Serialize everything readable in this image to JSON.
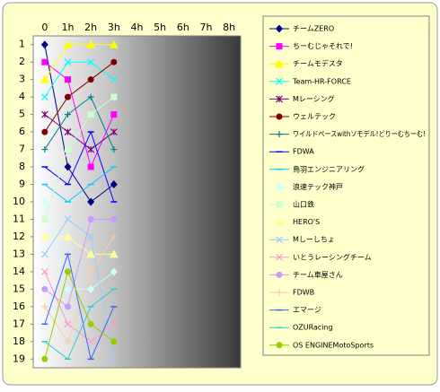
{
  "chart_data": {
    "type": "line",
    "categories": [
      "0",
      "1h",
      "2h",
      "3h",
      "4h",
      "5h",
      "6h",
      "7h",
      "8h"
    ],
    "ylim": [
      0.5,
      19.5
    ],
    "y_reversed": true,
    "yticks": [
      1,
      2,
      3,
      4,
      5,
      6,
      7,
      8,
      9,
      10,
      11,
      12,
      13,
      14,
      15,
      16,
      17,
      18,
      19
    ],
    "series": [
      {
        "name": "チームZERO",
        "color": "#000080",
        "marker": "diamond",
        "values": [
          1,
          8,
          10,
          9,
          null,
          null,
          null,
          null,
          null
        ]
      },
      {
        "name": "ちーむじゃそれで!",
        "color": "#FF00FF",
        "marker": "square",
        "values": [
          2,
          3,
          8,
          5,
          null,
          null,
          null,
          null,
          null
        ]
      },
      {
        "name": "チームモデスタ",
        "color": "#FFFF00",
        "marker": "triangle",
        "values": [
          3,
          1,
          1,
          1,
          null,
          null,
          null,
          null,
          null
        ]
      },
      {
        "name": "Team-HR-FORCE",
        "color": "#00FFFF",
        "marker": "x",
        "values": [
          4,
          2,
          2,
          3,
          null,
          null,
          null,
          null,
          null
        ]
      },
      {
        "name": "Mレーシング",
        "color": "#800080",
        "marker": "star",
        "values": [
          5,
          6,
          7,
          6,
          null,
          null,
          null,
          null,
          null
        ]
      },
      {
        "name": "ウェルテック",
        "color": "#800000",
        "marker": "circle",
        "values": [
          6,
          4,
          3,
          2,
          null,
          null,
          null,
          null,
          null
        ]
      },
      {
        "name": "ワイルドペースwithソモデル!どりーむちーむ!",
        "color": "#008080",
        "marker": "plus",
        "values": [
          7,
          5,
          4,
          7,
          null,
          null,
          null,
          null,
          null
        ]
      },
      {
        "name": "FDWA",
        "color": "#0000FF",
        "marker": "dash",
        "values": [
          8,
          9,
          6,
          10,
          null,
          null,
          null,
          null,
          null
        ]
      },
      {
        "name": "鳥羽エンジニアリング",
        "color": "#00CCFF",
        "marker": "dash",
        "values": [
          9,
          10,
          9,
          8,
          null,
          null,
          null,
          null,
          null
        ]
      },
      {
        "name": "浪速テック神戸",
        "color": "#CCFFFF",
        "marker": "diamond",
        "values": [
          10,
          15,
          15,
          14,
          null,
          null,
          null,
          null,
          null
        ]
      },
      {
        "name": "山口鉄",
        "color": "#CCFFCC",
        "marker": "square",
        "values": [
          11,
          7,
          5,
          4,
          null,
          null,
          null,
          null,
          null
        ]
      },
      {
        "name": "HERO'S",
        "color": "#FFFF99",
        "marker": "triangle",
        "values": [
          12,
          12,
          13,
          13,
          null,
          null,
          null,
          null,
          null
        ]
      },
      {
        "name": "Mしーしちょ",
        "color": "#99CCFF",
        "marker": "x",
        "values": [
          13,
          11,
          12,
          19,
          null,
          null,
          null,
          null,
          null
        ]
      },
      {
        "name": "いとうレーシングチーム",
        "color": "#FF99CC",
        "marker": "x",
        "values": [
          14,
          17,
          18,
          17,
          null,
          null,
          null,
          null,
          null
        ]
      },
      {
        "name": "チーム車屋さん",
        "color": "#CC99FF",
        "marker": "circle",
        "values": [
          15,
          16,
          11,
          11,
          null,
          null,
          null,
          null,
          null
        ]
      },
      {
        "name": "FDWB",
        "color": "#FFCC99",
        "marker": "plus",
        "values": [
          16,
          18,
          14,
          12,
          null,
          null,
          null,
          null,
          null
        ]
      },
      {
        "name": "エマージ",
        "color": "#3366FF",
        "marker": "dash",
        "values": [
          17,
          13,
          19,
          16,
          null,
          null,
          null,
          null,
          null
        ]
      },
      {
        "name": "OZURacing",
        "color": "#33CCCC",
        "marker": "dash",
        "values": [
          18,
          19,
          16,
          15,
          null,
          null,
          null,
          null,
          null
        ]
      },
      {
        "name": "OS ENGINEMotoSports",
        "color": "#99CC00",
        "marker": "circle",
        "values": [
          19,
          14,
          17,
          18,
          null,
          null,
          null,
          null,
          null
        ]
      }
    ]
  }
}
